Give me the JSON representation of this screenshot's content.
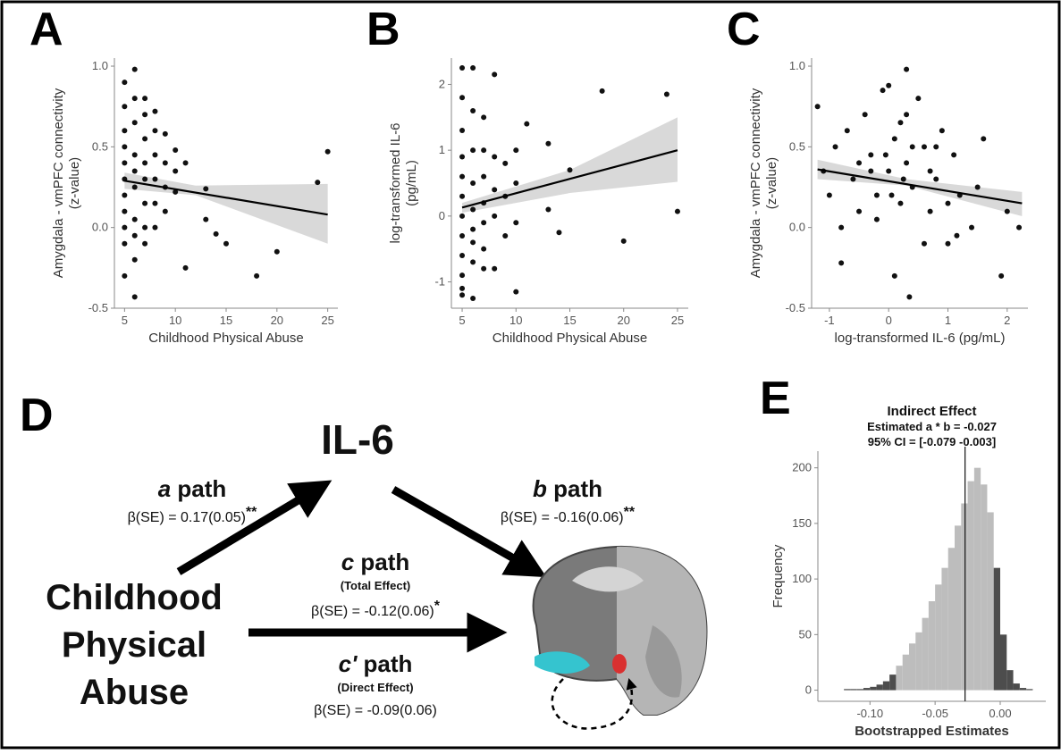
{
  "chart_data": [
    {
      "type": "scatter",
      "panel_label": "A",
      "x_label": "Childhood Physical Abuse",
      "y_label": [
        "Amygdala - vmPFC connectivity",
        "(z-value)"
      ],
      "xlim": [
        4,
        26
      ],
      "xticks": [
        5,
        10,
        15,
        20,
        25
      ],
      "ylim": [
        -0.5,
        1.05
      ],
      "yticks": [
        -0.5,
        {
          "value": 0,
          "label": "0.0"
        },
        0.5,
        {
          "value": 1,
          "label": "1.0"
        }
      ],
      "color": "#111111",
      "band_color": "#d9d9d9",
      "x": [
        5,
        5,
        5,
        5,
        5,
        5,
        5,
        5,
        5,
        5,
        5,
        6,
        6,
        6,
        6,
        6,
        6,
        6,
        6,
        6,
        7,
        7,
        7,
        7,
        7,
        7,
        7,
        7,
        8,
        8,
        8,
        8,
        8,
        8,
        9,
        9,
        9,
        9,
        10,
        10,
        10,
        11,
        11,
        13,
        13,
        14,
        15,
        18,
        20,
        24,
        25,
        6
      ],
      "values": [
        0.9,
        0.75,
        0.6,
        0.5,
        0.4,
        0.3,
        0.2,
        0.1,
        0,
        -0.1,
        -0.3,
        0.98,
        0.8,
        0.65,
        0.45,
        0.35,
        0.25,
        0.05,
        -0.05,
        -0.2,
        0.8,
        0.7,
        0.55,
        0.4,
        0.3,
        0.15,
        0,
        -0.1,
        0.72,
        0.6,
        0.45,
        0.3,
        0.15,
        0,
        0.58,
        0.4,
        0.25,
        0.1,
        0.48,
        0.35,
        0.22,
        0.4,
        -0.25,
        0.24,
        0.05,
        -0.04,
        -0.1,
        -0.3,
        -0.15,
        0.28,
        0.47,
        -0.43
      ],
      "fit": {
        "x": [
          5,
          25
        ],
        "values": [
          0.29,
          0.08
        ]
      },
      "band": {
        "x": [
          5,
          12,
          25
        ],
        "upper": [
          0.34,
          0.26,
          0.27
        ],
        "lower": [
          0.24,
          0.2,
          -0.1
        ]
      }
    },
    {
      "type": "scatter",
      "panel_label": "B",
      "x_label": "Childhood Physical Abuse",
      "y_label": [
        "log-transformed IL-6",
        "(pg/mL)"
      ],
      "xlim": [
        4,
        26
      ],
      "xticks": [
        5,
        10,
        15,
        20,
        25
      ],
      "ylim": [
        -1.4,
        2.4
      ],
      "yticks": [
        -1,
        0,
        1,
        2
      ],
      "color": "#111111",
      "band_color": "#d9d9d9",
      "x": [
        5,
        5,
        5,
        5,
        5,
        5,
        5,
        5,
        5,
        5,
        5,
        5,
        6,
        6,
        6,
        6,
        6,
        6,
        6,
        6,
        7,
        7,
        7,
        7,
        7,
        7,
        7,
        8,
        8,
        8,
        8,
        8,
        9,
        9,
        9,
        10,
        10,
        10,
        11,
        13,
        13,
        14,
        15,
        18,
        20,
        24,
        25,
        10,
        6
      ],
      "values": [
        2.25,
        1.8,
        1.3,
        0.9,
        0.6,
        0.3,
        0,
        -0.3,
        -0.6,
        -0.9,
        -1.1,
        -1.2,
        2.25,
        1.6,
        1.0,
        0.5,
        0.1,
        -0.4,
        -0.7,
        -1.25,
        1.5,
        1.0,
        0.6,
        0.2,
        -0.1,
        -0.5,
        -0.8,
        2.15,
        0.9,
        0.4,
        0,
        -0.8,
        0.8,
        0.3,
        -0.3,
        1.0,
        0.5,
        -0.1,
        1.4,
        1.1,
        0.1,
        -0.25,
        0.7,
        1.9,
        -0.38,
        1.85,
        0.07,
        -1.15,
        -0.2
      ],
      "fit": {
        "x": [
          5,
          25
        ],
        "values": [
          0.13,
          1.0
        ]
      },
      "band": {
        "x": [
          5,
          15,
          25
        ],
        "upper": [
          0.2,
          0.7,
          1.5
        ],
        "lower": [
          0.05,
          0.35,
          0.52
        ]
      }
    },
    {
      "type": "scatter",
      "panel_label": "C",
      "x_label": "log-transformed IL-6 (pg/mL)",
      "y_label": [
        "Amygdala - vmPFC connectivity",
        "(z-value)"
      ],
      "xlim": [
        -1.3,
        2.35
      ],
      "xticks": [
        -1,
        0,
        1,
        2
      ],
      "ylim": [
        -0.5,
        1.05
      ],
      "yticks": [
        -0.5,
        {
          "value": 0,
          "label": "0.0"
        },
        0.5,
        {
          "value": 1,
          "label": "1.0"
        }
      ],
      "color": "#111111",
      "band_color": "#d9d9d9",
      "x": [
        -1.2,
        -1.0,
        -0.9,
        -0.8,
        -0.7,
        -0.6,
        -0.5,
        -0.4,
        -0.3,
        -0.2,
        -0.1,
        0,
        0,
        0.1,
        0.2,
        0.2,
        0.3,
        0.3,
        0.4,
        0.5,
        0.6,
        0.7,
        0.8,
        0.9,
        1.0,
        1.1,
        1.2,
        1.4,
        1.6,
        1.9,
        2.2,
        -0.5,
        -0.2,
        0.1,
        0.4,
        0.7,
        1.0,
        -0.8,
        0.3,
        0.05,
        0.6,
        -0.3,
        1.5,
        2.0,
        0.25,
        -0.05,
        0.8,
        1.15,
        -1.1,
        0.35
      ],
      "values": [
        0.75,
        0.2,
        0.5,
        -0.22,
        0.6,
        0.3,
        0.1,
        0.7,
        0.45,
        0.05,
        0.85,
        0.88,
        0.35,
        0.55,
        0.15,
        0.65,
        0.98,
        0.4,
        0.25,
        0.8,
        0.5,
        0.1,
        0.3,
        0.6,
        -0.1,
        0.45,
        0.2,
        0.0,
        0.55,
        -0.3,
        0.0,
        0.4,
        0.2,
        -0.3,
        0.5,
        0.35,
        0.15,
        0.0,
        0.7,
        0.2,
        -0.1,
        0.35,
        0.25,
        0.1,
        0.3,
        0.45,
        0.5,
        -0.05,
        0.35,
        -0.43
      ],
      "fit": {
        "x": [
          -1.2,
          2.25
        ],
        "values": [
          0.36,
          0.15
        ]
      },
      "band": {
        "x": [
          -1.2,
          0.3,
          2.25
        ],
        "upper": [
          0.42,
          0.3,
          0.22
        ],
        "lower": [
          0.3,
          0.26,
          0.07
        ]
      }
    },
    {
      "type": "histogram",
      "panel_label": "E",
      "title": "Indirect Effect",
      "subtitle": [
        "Estimated a * b  = -0.027",
        "95% CI = [-0.079 -0.003]"
      ],
      "x_label": "Bootstrapped Estimates",
      "y_label": "Frequency",
      "xlim": [
        -0.14,
        0.035
      ],
      "xticks": [
        {
          "value": -0.1,
          "label": "-0.10"
        },
        {
          "value": -0.05,
          "label": "-0.05"
        },
        {
          "value": 0,
          "label": "0.00"
        }
      ],
      "ylim": [
        -10,
        215
      ],
      "yticks": [
        0,
        50,
        100,
        150,
        200
      ],
      "bins": [
        -0.12,
        -0.115,
        -0.11,
        -0.105,
        -0.1,
        -0.095,
        -0.09,
        -0.085,
        -0.08,
        -0.075,
        -0.07,
        -0.065,
        -0.06,
        -0.055,
        -0.05,
        -0.045,
        -0.04,
        -0.035,
        -0.03,
        -0.025,
        -0.02,
        -0.015,
        -0.01,
        -0.005,
        0,
        0.005,
        0.01,
        0.015,
        0.02,
        0.025
      ],
      "values": [
        1,
        1,
        1,
        2,
        3,
        5,
        8,
        14,
        22,
        32,
        42,
        52,
        65,
        80,
        95,
        110,
        128,
        148,
        168,
        188,
        200,
        185,
        160,
        110,
        50,
        18,
        6,
        2,
        1
      ],
      "estimate": -0.027,
      "ci": [
        -0.079,
        -0.003
      ],
      "color": "#bdbdbd",
      "outside_color": "#4d4d4d"
    }
  ],
  "diagram": {
    "panel_label": "D",
    "mediator": "IL-6",
    "predictor": [
      "Childhood",
      "Physical",
      "Abuse"
    ],
    "a_path": {
      "letter": "a",
      "word": " path",
      "stat": "β(SE) = 0.17(0.05)",
      "sig": "**"
    },
    "b_path": {
      "letter": "b",
      "word": " path",
      "stat": "β(SE) = -0.16(0.06)",
      "sig": "**"
    },
    "c_path": {
      "letter": "c",
      "word": " path",
      "note": "(Total Effect)",
      "stat": "β(SE) = -0.12(0.06)",
      "sig": "*"
    },
    "c_prime_path": {
      "letter": "c'",
      "word": " path",
      "note": "(Direct Effect)",
      "stat": "β(SE) = -0.09(0.06)"
    }
  }
}
